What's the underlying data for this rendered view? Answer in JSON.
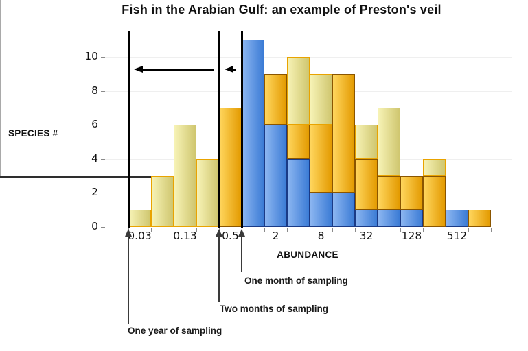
{
  "page": {
    "background": "#ffffff"
  },
  "chart_data": {
    "type": "bar",
    "variant": "layered-histogram",
    "title": "Fish in the Arabian Gulf: an example of Preston's veil",
    "xlabel": "ABUNDANCE",
    "ylabel": "SPECIES #",
    "x_tick_labels": [
      "0.03",
      "0.13",
      "0.5",
      "2",
      "8",
      "32",
      "128",
      "512"
    ],
    "y_ticks": [
      0,
      2,
      4,
      6,
      8,
      10
    ],
    "ylim": [
      0,
      11.5
    ],
    "n_bins": 16,
    "grid": "faint-horizontal",
    "legend_position": "none",
    "series": [
      {
        "name": "One year of sampling",
        "layer": "back",
        "fill_light": "#f7f3b6",
        "fill_dark": "#cfc66f",
        "border": "#e9a300",
        "values": [
          1,
          3,
          6,
          4,
          null,
          null,
          null,
          10,
          9,
          null,
          6,
          7,
          null,
          4,
          null,
          null
        ]
      },
      {
        "name": "Two months of sampling",
        "layer": "middle",
        "fill_light": "#ffd65e",
        "fill_dark": "#e39a00",
        "border": "#8a5500",
        "values": [
          null,
          null,
          null,
          null,
          7,
          null,
          9,
          6,
          6,
          9,
          4,
          3,
          3,
          3,
          null,
          1
        ]
      },
      {
        "name": "One month of sampling",
        "layer": "front",
        "fill_light": "#8cb6f1",
        "fill_dark": "#3b7bd5",
        "border": "#1a3a86",
        "values": [
          null,
          null,
          null,
          null,
          null,
          11,
          6,
          4,
          2,
          2,
          1,
          1,
          1,
          null,
          1,
          null
        ]
      }
    ],
    "veils": [
      {
        "label": "One year of sampling",
        "at_bin_boundary": 0
      },
      {
        "label": "Two months of sampling",
        "at_bin_boundary": 4
      },
      {
        "label": "One month of sampling",
        "at_bin_boundary": 5
      }
    ],
    "arrows": [
      {
        "direction": "left",
        "from_boundary": 4,
        "to_boundary": 0
      },
      {
        "direction": "left",
        "from_boundary": 5,
        "to_boundary": 4
      }
    ],
    "axis_colors": {
      "x_axis": "#2e2e2e",
      "y_axis": "#a9a9a9",
      "ticks": "#8a8a8a",
      "grid": "#efefef",
      "text": "#111111"
    }
  }
}
